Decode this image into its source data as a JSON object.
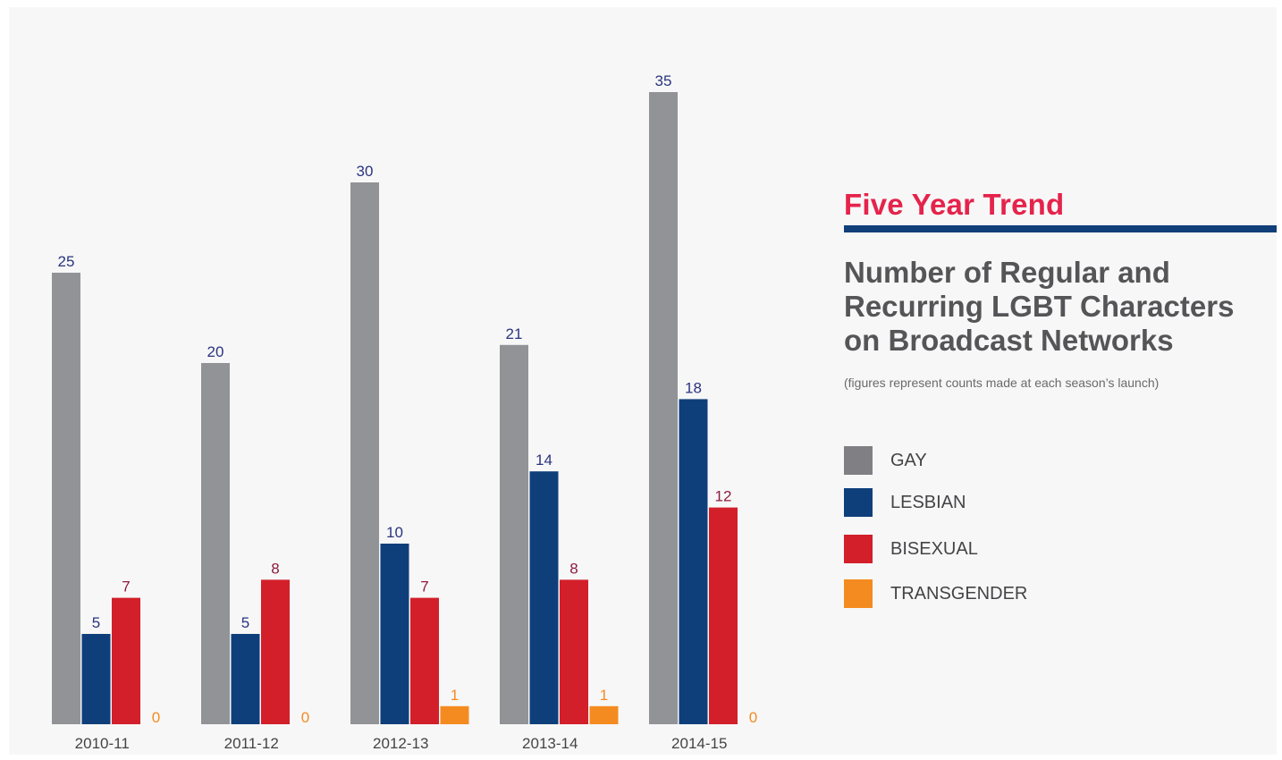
{
  "chart_data": {
    "type": "bar",
    "categories": [
      "2010-11",
      "2011-12",
      "2012-13",
      "2013-14",
      "2014-15"
    ],
    "series": [
      {
        "name": "GAY",
        "values": [
          25,
          20,
          30,
          21,
          35
        ],
        "color": "#929396",
        "label_color": "#2a3480"
      },
      {
        "name": "LESBIAN",
        "values": [
          5,
          5,
          10,
          14,
          18
        ],
        "color": "#0f3f7b",
        "label_color": "#2a3480"
      },
      {
        "name": "BISEXUAL",
        "values": [
          7,
          8,
          7,
          8,
          12
        ],
        "color": "#d21f2a",
        "label_color": "#8e1b3c"
      },
      {
        "name": "TRANSGENDER",
        "values": [
          0,
          0,
          1,
          1,
          0
        ],
        "color": "#f48b20",
        "label_color": "#f48b20"
      }
    ],
    "ylim": [
      0,
      35
    ],
    "grid": false,
    "data_labels": true,
    "legend_position": "right"
  },
  "header": {
    "trend_title": "Five Year Trend",
    "subtitle_lines": [
      "Number of Regular and",
      "Recurring LGBT Characters",
      "on Broadcast Networks"
    ],
    "note": "(figures represent counts made at each season’s launch)"
  },
  "legend": [
    {
      "label": "GAY",
      "color": "#808084"
    },
    {
      "label": "LESBIAN",
      "color": "#0f3f7b"
    },
    {
      "label": "BISEXUAL",
      "color": "#d21f2a"
    },
    {
      "label": "TRANSGENDER",
      "color": "#f48b20"
    }
  ],
  "colors": {
    "title_accent": "#e5234b",
    "rule": "#103f7a",
    "axis_text": "#444447"
  }
}
